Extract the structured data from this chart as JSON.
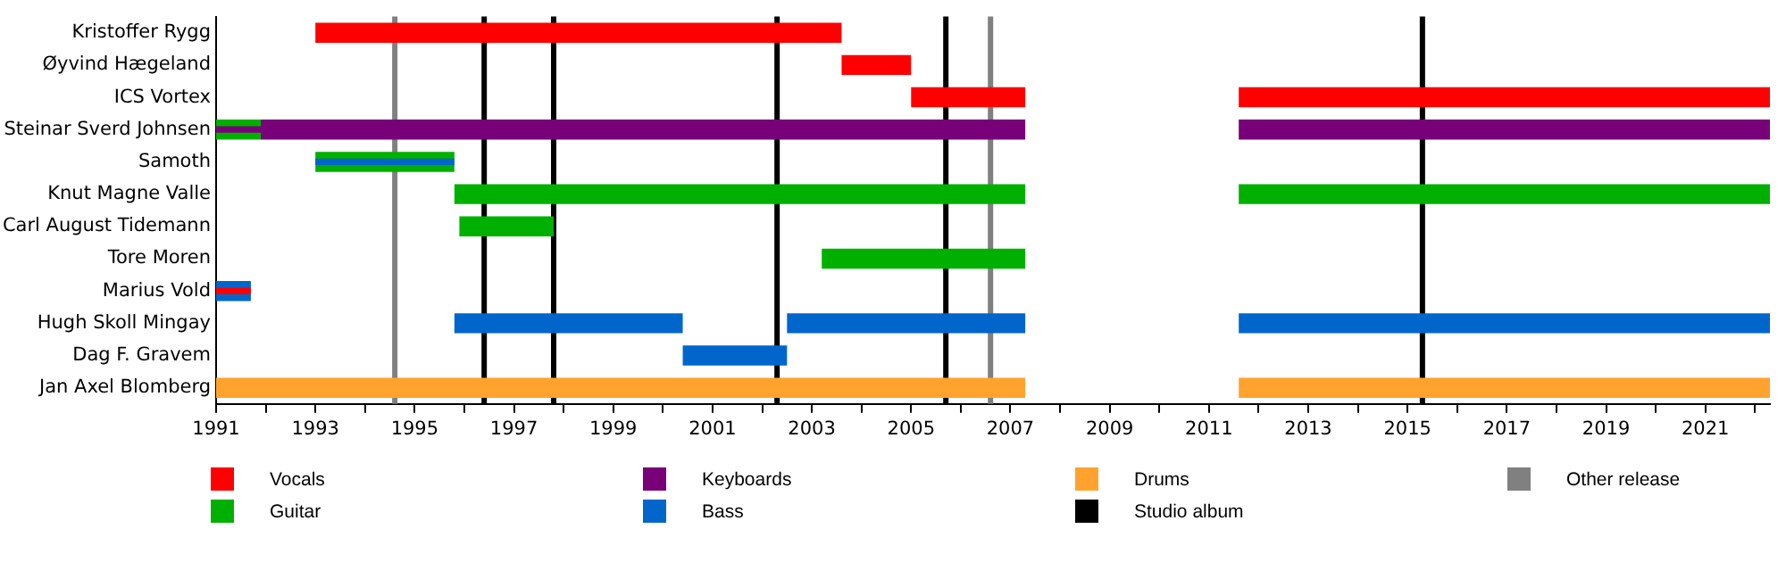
{
  "chart_data": {
    "type": "bar",
    "orientation": "horizontal",
    "categories": [
      "Kristoffer Rygg",
      "Øyvind Hægeland",
      "ICS Vortex",
      "Steinar Sverd Johnsen",
      "Samoth",
      "Knut Magne Valle",
      "Carl August Tidemann",
      "Tore Moren",
      "Marius Vold",
      "Hugh Skoll Mingay",
      "Dag F. Gravem",
      "Jan Axel Blomberg"
    ],
    "series": [
      {
        "name": "Vocals",
        "color": "#ff0000",
        "base": [
          1993,
          2003.6,
          2005.0,
          null,
          null,
          null,
          null,
          null,
          null,
          null,
          null,
          null
        ],
        "values": [
          10.6,
          1.4,
          2.3,
          null,
          null,
          null,
          null,
          null,
          null,
          null,
          null,
          null
        ]
      },
      {
        "name": "Guitar",
        "color": "#00b000",
        "base": [
          null,
          null,
          null,
          1991,
          1993,
          1995.8,
          1995.9,
          2003.2,
          null,
          null,
          null,
          null
        ],
        "values": [
          null,
          null,
          null,
          0.9,
          2.8,
          11.5,
          1.9,
          4.1,
          null,
          null,
          null,
          null
        ]
      },
      {
        "name": "Keyboards",
        "color": "#780078",
        "base": [
          null,
          null,
          null,
          1991.9,
          null,
          null,
          null,
          null,
          null,
          null,
          null,
          null
        ],
        "values": [
          null,
          null,
          null,
          15.4,
          null,
          null,
          null,
          null,
          null,
          null,
          null,
          null
        ]
      },
      {
        "name": "Bass",
        "color": "#0066cc",
        "base": [
          null,
          null,
          null,
          null,
          1993,
          null,
          null,
          null,
          1991,
          1995.8,
          2000.4,
          null
        ],
        "values": [
          null,
          null,
          null,
          null,
          2.8,
          null,
          null,
          null,
          0.7,
          4.6,
          2.1,
          null
        ]
      },
      {
        "name": "Drums",
        "color": "#ffa32e",
        "base": [
          null,
          null,
          null,
          null,
          null,
          null,
          null,
          null,
          null,
          null,
          null,
          1991
        ],
        "values": [
          null,
          null,
          null,
          null,
          null,
          null,
          null,
          null,
          null,
          null,
          null,
          16.3
        ]
      },
      {
        "color": "#ff0000",
        "base": [
          null,
          null,
          2011.6,
          null,
          null,
          null,
          null,
          null,
          1991,
          null,
          null,
          null
        ],
        "values": [
          null,
          null,
          10.7,
          null,
          null,
          null,
          null,
          null,
          0.7,
          null,
          null,
          null
        ]
      },
      {
        "color": "#00b000",
        "base": [
          null,
          null,
          null,
          null,
          null,
          2011.6,
          null,
          null,
          null,
          null,
          null,
          null
        ],
        "values": [
          null,
          null,
          null,
          null,
          null,
          10.7,
          null,
          null,
          null,
          null,
          null,
          null
        ]
      },
      {
        "color": "#780078",
        "base": [
          null,
          null,
          null,
          1991,
          null,
          null,
          null,
          null,
          null,
          null,
          null,
          null
        ],
        "values": [
          null,
          null,
          null,
          0.9,
          null,
          null,
          null,
          null,
          null,
          null,
          null,
          null
        ]
      },
      {
        "color": "#780078",
        "base": [
          null,
          null,
          null,
          2011.6,
          null,
          null,
          null,
          null,
          null,
          null,
          null,
          null
        ],
        "values": [
          null,
          null,
          null,
          10.7,
          null,
          null,
          null,
          null,
          null,
          null,
          null,
          null
        ]
      },
      {
        "color": "#0066cc",
        "base": [
          null,
          null,
          null,
          null,
          null,
          null,
          null,
          null,
          null,
          2002.5,
          null,
          null
        ],
        "values": [
          null,
          null,
          null,
          null,
          null,
          null,
          null,
          null,
          null,
          4.8,
          null,
          null
        ]
      },
      {
        "color": "#0066cc",
        "base": [
          null,
          null,
          null,
          null,
          null,
          null,
          null,
          null,
          null,
          2011.6,
          null,
          null
        ],
        "values": [
          null,
          null,
          null,
          null,
          null,
          null,
          null,
          null,
          null,
          10.7,
          null,
          null
        ]
      },
      {
        "color": "#ffa32e",
        "base": [
          null,
          null,
          null,
          null,
          null,
          null,
          null,
          null,
          null,
          null,
          null,
          2011.6
        ],
        "values": [
          null,
          null,
          null,
          null,
          null,
          null,
          null,
          null,
          null,
          null,
          null,
          10.7
        ]
      }
    ],
    "ref_lines": [
      {
        "axis": "x",
        "value": 1996.4,
        "label": "Studio album",
        "color": "#000000"
      },
      {
        "axis": "x",
        "value": 1997.8,
        "label": null,
        "color": "#000000"
      },
      {
        "axis": "x",
        "value": 2002.3,
        "label": null,
        "color": "#000000"
      },
      {
        "axis": "x",
        "value": 2005.7,
        "label": null,
        "color": "#000000"
      },
      {
        "axis": "x",
        "value": 2015.3,
        "label": null,
        "color": "#000000"
      },
      {
        "axis": "x",
        "value": 1994.6,
        "label": "Other release",
        "color": "#808080"
      },
      {
        "axis": "x",
        "value": 2006.6,
        "label": null,
        "color": "#808080"
      }
    ],
    "xlim": [
      1991,
      2022.3
    ],
    "xticks": [
      1991,
      {
        "value": 1992,
        "label": null
      },
      1993,
      {
        "value": 1994,
        "label": null
      },
      1995,
      {
        "value": 1996,
        "label": null
      },
      1997,
      {
        "value": 1998,
        "label": null
      },
      1999,
      {
        "value": 2000,
        "label": null
      },
      2001,
      {
        "value": 2002,
        "label": null
      },
      2003,
      {
        "value": 2004,
        "label": null
      },
      2005,
      {
        "value": 2006,
        "label": null
      },
      2007,
      {
        "value": 2008,
        "label": null
      },
      2009,
      {
        "value": 2010,
        "label": null
      },
      2011,
      {
        "value": 2012,
        "label": null
      },
      2013,
      {
        "value": 2014,
        "label": null
      },
      2015,
      {
        "value": 2016,
        "label": null
      },
      2017,
      {
        "value": 2018,
        "label": null
      },
      2019,
      {
        "value": 2020,
        "label": null
      },
      2021,
      {
        "value": 2022,
        "label": null
      }
    ],
    "legend": "bottom",
    "grid": false
  }
}
